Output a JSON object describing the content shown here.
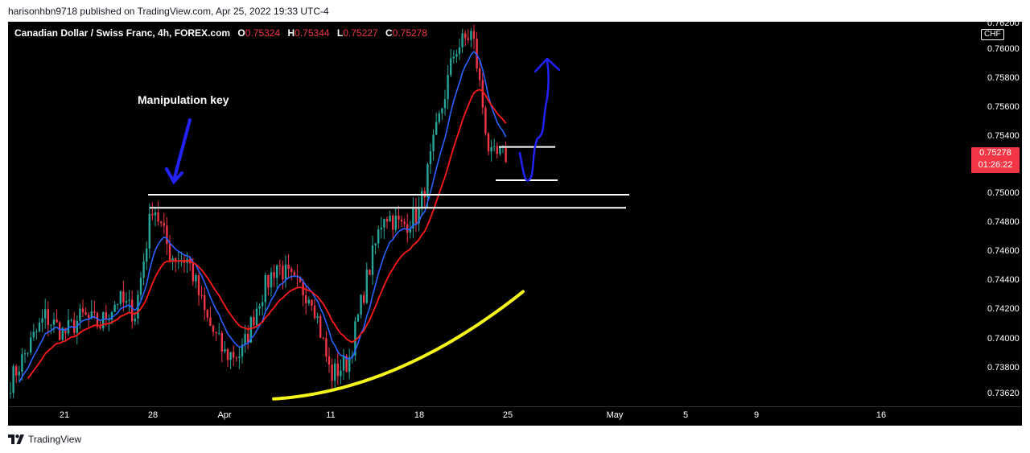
{
  "publisher_line": "harisonhbn9718 published on TradingView.com, Apr 25, 2022 19:33 UTC-4",
  "legend": {
    "symbol": "Canadian Dollar / Swiss Franc, 4h, FOREX.com",
    "o_label": "O",
    "o_value": "0.75324",
    "h_label": "H",
    "h_value": "0.75344",
    "l_label": "L",
    "l_value": "0.75227",
    "c_label": "C",
    "c_value": "0.75278"
  },
  "annotation": "Manipulation key",
  "price_axis": {
    "currency": "CHF",
    "ticks": [
      "0.76200",
      "0.76000",
      "0.75800",
      "0.75600",
      "0.75400",
      "0.75000",
      "0.74800",
      "0.74600",
      "0.74400",
      "0.74200",
      "0.74000",
      "0.73800",
      "0.73620"
    ],
    "last_price": "0.75278",
    "countdown": "01:26:22"
  },
  "time_axis": {
    "labels": [
      "21",
      "28",
      "Apr",
      "11",
      "18",
      "25",
      "May",
      "5",
      "9",
      "16"
    ]
  },
  "footer": {
    "brand": "TradingView"
  },
  "colors": {
    "chart_bg": "#000000",
    "bull": "#26a69a",
    "bear": "#f23645",
    "ema_fast": "#2962ff",
    "ema_slow": "#ff1a1a",
    "ema_long": "#f5f51a",
    "levels": "#ffffff",
    "annotation_arrow": "#2222ff"
  },
  "chart_data": {
    "type": "candlestick",
    "title": "Canadian Dollar / Swiss Franc, 4h, FOREX.com",
    "ylim": [
      0.7358,
      0.7626
    ],
    "key_levels": [
      0.75,
      0.7491
    ],
    "range_box": [
      0.7533,
      0.751
    ],
    "anchors": [
      {
        "t": "Mar 17",
        "price": 0.7368
      },
      {
        "t": "Mar 18",
        "price": 0.7416
      },
      {
        "t": "Mar 21",
        "price": 0.7404
      },
      {
        "t": "Mar 22",
        "price": 0.7416
      },
      {
        "t": "Mar 23",
        "price": 0.741
      },
      {
        "t": "Mar 24",
        "price": 0.7428
      },
      {
        "t": "Mar 25",
        "price": 0.7418
      },
      {
        "t": "Mar 28",
        "price": 0.7495
      },
      {
        "t": "Mar 29",
        "price": 0.7458
      },
      {
        "t": "Mar 30",
        "price": 0.7455
      },
      {
        "t": "Mar 31",
        "price": 0.7415
      },
      {
        "t": "Apr 1",
        "price": 0.739
      },
      {
        "t": "Apr 4",
        "price": 0.739
      },
      {
        "t": "Apr 5",
        "price": 0.7428
      },
      {
        "t": "Apr 6",
        "price": 0.7452
      },
      {
        "t": "Apr 7",
        "price": 0.7438
      },
      {
        "t": "Apr 8",
        "price": 0.743
      },
      {
        "t": "Apr 11",
        "price": 0.7375
      },
      {
        "t": "Apr 12",
        "price": 0.7385
      },
      {
        "t": "Apr 13",
        "price": 0.744
      },
      {
        "t": "Apr 14",
        "price": 0.7488
      },
      {
        "t": "Apr 15",
        "price": 0.7478
      },
      {
        "t": "Apr 18",
        "price": 0.7488
      },
      {
        "t": "Apr 19",
        "price": 0.7545
      },
      {
        "t": "Apr 20",
        "price": 0.76
      },
      {
        "t": "Apr 21",
        "price": 0.7612
      },
      {
        "t": "Apr 22",
        "price": 0.7525
      },
      {
        "t": "Apr 25",
        "price": 0.75278
      }
    ]
  }
}
